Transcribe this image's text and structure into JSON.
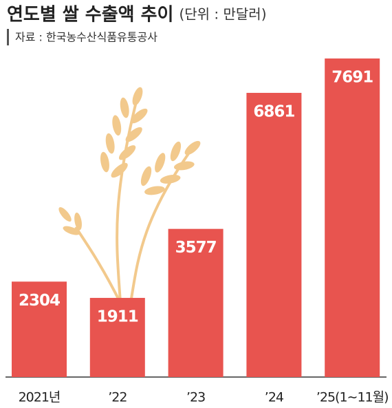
{
  "chart_data": {
    "type": "bar",
    "title": "연도별 쌀 수출액 추이",
    "subtitle": "(단위 : 만달러)",
    "source": "자료 : 한국농수산식품유통공사",
    "categories": [
      "2021년",
      "’22",
      "’23",
      "’24",
      "’25(1∼11월)"
    ],
    "values": [
      2304,
      1911,
      3577,
      6861,
      7691
    ],
    "color": "#e8544f"
  }
}
